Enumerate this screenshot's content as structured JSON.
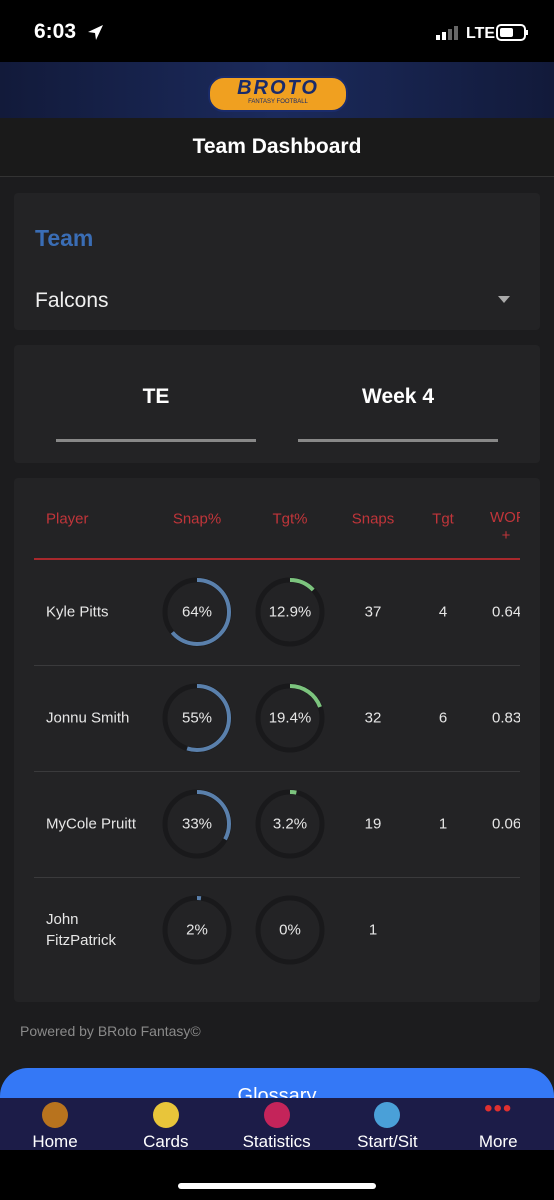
{
  "status_bar": {
    "time": "6:03",
    "network": "LTE"
  },
  "header": {
    "logo": "BROTO",
    "logo_sub": "FANTASY FOOTBALL",
    "title": "Team Dashboard"
  },
  "team_card": {
    "label": "Team",
    "value": "Falcons"
  },
  "filters": {
    "position": "TE",
    "week": "Week 4"
  },
  "table": {
    "columns": [
      "Player",
      "Snap%",
      "Tgt%",
      "Snaps",
      "Tgt",
      "WOPR +"
    ],
    "rows": [
      {
        "player": "Kyle Pitts",
        "snap_pct": 64,
        "snap_label": "64%",
        "tgt_pct": 12.9,
        "tgt_label": "12.9%",
        "snaps": 37,
        "tgt": 4,
        "wopr": 0.64
      },
      {
        "player": "Jonnu Smith",
        "snap_pct": 55,
        "snap_label": "55%",
        "tgt_pct": 19.4,
        "tgt_label": "19.4%",
        "snaps": 32,
        "tgt": 6,
        "wopr": 0.83
      },
      {
        "player": "MyCole Pruitt",
        "snap_pct": 33,
        "snap_label": "33%",
        "tgt_pct": 3.2,
        "tgt_label": "3.2%",
        "snaps": 19,
        "tgt": 1,
        "wopr": 0.06
      },
      {
        "player": "John FitzPatrick",
        "snap_pct": 2,
        "snap_label": "2%",
        "tgt_pct": 0,
        "tgt_label": "0%",
        "snaps": 1,
        "tgt": null,
        "wopr": null
      }
    ]
  },
  "footer": {
    "powered_by": "Powered by BRoto Fantasy©",
    "button": "Glossary"
  },
  "nav": [
    "Home",
    "Cards",
    "Statistics",
    "Start/Sit",
    "More"
  ]
}
